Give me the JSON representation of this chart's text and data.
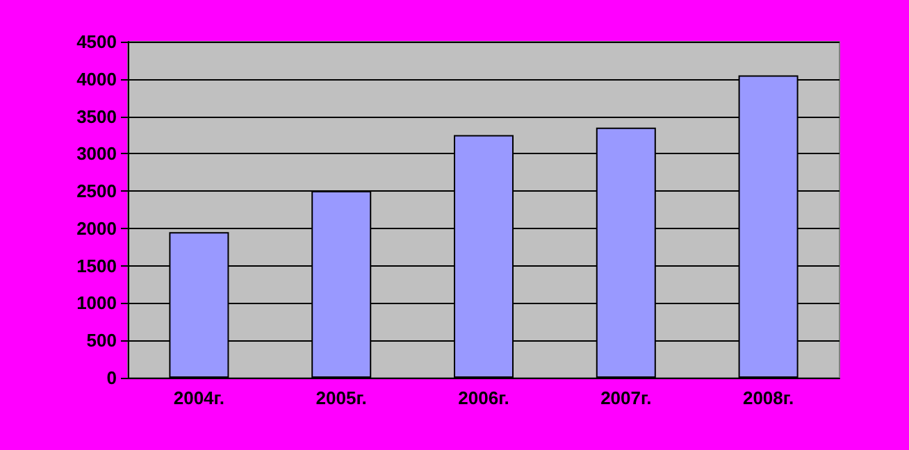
{
  "chart_data": {
    "type": "bar",
    "categories": [
      "2004г.",
      "2005г.",
      "2006г.",
      "2007г.",
      "2008г."
    ],
    "values": [
      1950,
      2500,
      3250,
      3350,
      4050
    ],
    "color": "#9999ff",
    "ylim": [
      0,
      4500
    ],
    "yticks": [
      0,
      500,
      1000,
      1500,
      2000,
      2500,
      3000,
      3500,
      4000,
      4500
    ],
    "grid": "y"
  }
}
